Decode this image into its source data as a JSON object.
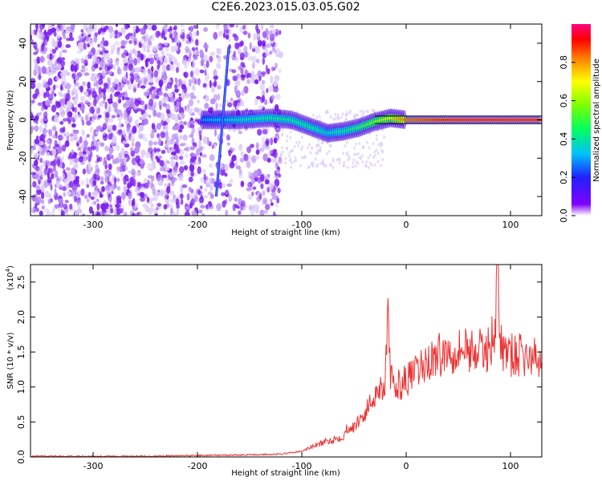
{
  "page_title": "C2E6.2023.015.03.05.G02",
  "chart_data": [
    {
      "type": "heatmap",
      "xlabel": "Height of straight line (km)",
      "ylabel": "Frequency (Hz)",
      "xlim": [
        -360,
        130
      ],
      "ylim": [
        -50,
        50
      ],
      "x_ticks": [
        -300,
        -200,
        -100,
        0,
        100
      ],
      "y_ticks": [
        -40,
        -20,
        0,
        20,
        40
      ],
      "x_tick_labels": [
        "-300",
        "-200",
        "-100",
        "0",
        "100"
      ],
      "y_tick_labels": [
        "-40",
        "-20",
        "0",
        "20",
        "40"
      ],
      "colorbar": {
        "label": "Normalized spectral amplitude",
        "range": [
          0,
          1
        ],
        "ticks": [
          0.0,
          0.2,
          0.4,
          0.6,
          0.8
        ],
        "tick_labels": [
          "0.0",
          "0.2",
          "0.4",
          "0.6",
          "0.8"
        ]
      },
      "signal_track": [
        {
          "x": -195,
          "y": 0,
          "v": 0.3
        },
        {
          "x": -180,
          "y": 0,
          "v": 0.35
        },
        {
          "x": -160,
          "y": 0,
          "v": 0.4
        },
        {
          "x": -130,
          "y": 1,
          "v": 0.45
        },
        {
          "x": -110,
          "y": 0,
          "v": 0.45
        },
        {
          "x": -90,
          "y": -4,
          "v": 0.45
        },
        {
          "x": -75,
          "y": -7,
          "v": 0.4
        },
        {
          "x": -60,
          "y": -6,
          "v": 0.45
        },
        {
          "x": -45,
          "y": -4,
          "v": 0.5
        },
        {
          "x": -30,
          "y": -1,
          "v": 0.6
        },
        {
          "x": -15,
          "y": 1,
          "v": 0.7
        },
        {
          "x": 0,
          "y": 0,
          "v": 0.85
        },
        {
          "x": 50,
          "y": 0,
          "v": 0.95
        },
        {
          "x": 100,
          "y": 0,
          "v": 0.95
        },
        {
          "x": 130,
          "y": 0,
          "v": 0.95
        }
      ],
      "diagonal_streak": {
        "x_start": -182,
        "y_start": -40,
        "x_end": -170,
        "y_end": 38
      }
    },
    {
      "type": "line",
      "xlabel": "Height of straight line (km)",
      "ylabel": "SNR (10 * v/v)",
      "yscale_label": "(x10",
      "yscale_exp": "4",
      "yscale_close": ")",
      "xlim": [
        -360,
        130
      ],
      "ylim": [
        0,
        2.75
      ],
      "x_ticks": [
        -300,
        -200,
        -100,
        0,
        100
      ],
      "y_ticks": [
        0.0,
        0.5,
        1.0,
        1.5,
        2.0,
        2.5
      ],
      "x_tick_labels": [
        "-300",
        "-200",
        "-100",
        "0",
        "100"
      ],
      "y_tick_labels": [
        "0.0",
        "0.5",
        "1.0",
        "1.5",
        "2.0",
        "2.5"
      ],
      "color": "#ee3333",
      "series": [
        {
          "x": [
            -360,
            -300,
            -250,
            -200,
            -150,
            -120,
            -100,
            -90,
            -80,
            -70,
            -60,
            -55,
            -50,
            -45,
            -40,
            -35,
            -30,
            -25,
            -20,
            -18,
            -15,
            -10,
            -5,
            0,
            10,
            20,
            30,
            40,
            50,
            60,
            70,
            80,
            85,
            88,
            90,
            95,
            100,
            110,
            120,
            130
          ],
          "y": [
            0.01,
            0.01,
            0.01,
            0.02,
            0.03,
            0.04,
            0.08,
            0.15,
            0.2,
            0.25,
            0.3,
            0.45,
            0.4,
            0.55,
            0.6,
            0.75,
            0.9,
            1.0,
            1.05,
            2.15,
            1.1,
            1.0,
            1.05,
            1.1,
            1.2,
            1.35,
            1.45,
            1.5,
            1.55,
            1.55,
            1.5,
            1.55,
            1.9,
            2.7,
            1.6,
            1.5,
            1.45,
            1.45,
            1.4,
            1.4
          ]
        }
      ]
    }
  ]
}
